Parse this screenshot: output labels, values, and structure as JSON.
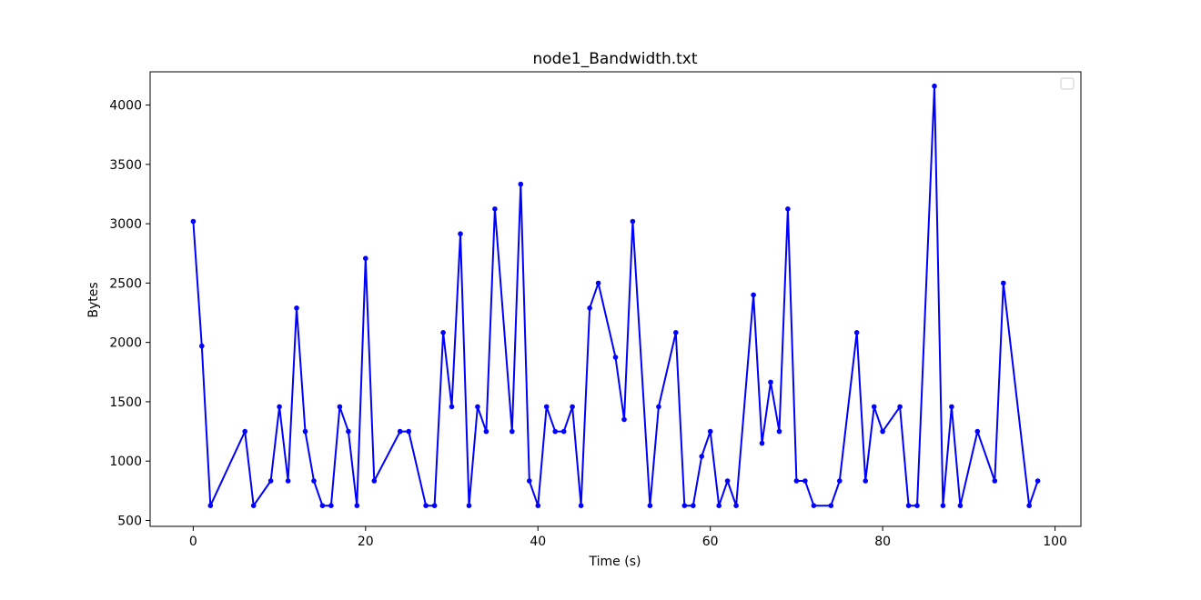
{
  "chart_data": {
    "type": "line",
    "title": "node1_Bandwidth.txt",
    "xlabel": "Time (s)",
    "ylabel": "Bytes",
    "xlim": [
      -5,
      103
    ],
    "ylim": [
      450,
      4280
    ],
    "xticks": [
      0,
      20,
      40,
      60,
      80,
      100
    ],
    "yticks": [
      500,
      1000,
      1500,
      2000,
      2500,
      3000,
      3500,
      4000
    ],
    "grid": false,
    "legend": "top-right (empty)",
    "series": [
      {
        "color": "#0000ff",
        "marker": "circle",
        "x": [
          0,
          1,
          2,
          6,
          7,
          9,
          10,
          11,
          12,
          13,
          14,
          15,
          16,
          17,
          18,
          19,
          20,
          21,
          24,
          25,
          27,
          28,
          29,
          30,
          31,
          32,
          33,
          34,
          35,
          37,
          38,
          39,
          40,
          41,
          42,
          43,
          44,
          45,
          46,
          47,
          49,
          50,
          51,
          53,
          54,
          56,
          57,
          58,
          59,
          60,
          61,
          62,
          63,
          65,
          66,
          67,
          68,
          69,
          70,
          71,
          72,
          74,
          75,
          77,
          78,
          79,
          80,
          82,
          83,
          84,
          86,
          87,
          88,
          89,
          91,
          93,
          94,
          97,
          98
        ],
        "y": [
          3020,
          1970,
          625,
          1250,
          625,
          833,
          1458,
          833,
          2290,
          1250,
          833,
          625,
          625,
          1458,
          1250,
          625,
          2708,
          833,
          1250,
          1250,
          625,
          625,
          2083,
          1458,
          2915,
          625,
          1458,
          1250,
          3125,
          1250,
          3333,
          833,
          625,
          1458,
          1250,
          1250,
          1458,
          625,
          2290,
          2500,
          1875,
          1350,
          3020,
          625,
          1458,
          2083,
          625,
          625,
          1040,
          1250,
          625,
          833,
          625,
          2400,
          1150,
          1665,
          1250,
          3125,
          833,
          833,
          625,
          625,
          833,
          2083,
          833,
          1458,
          1250,
          1458,
          625,
          625,
          4160,
          625,
          1458,
          625,
          1250,
          833,
          2500,
          625,
          833
        ]
      }
    ]
  }
}
